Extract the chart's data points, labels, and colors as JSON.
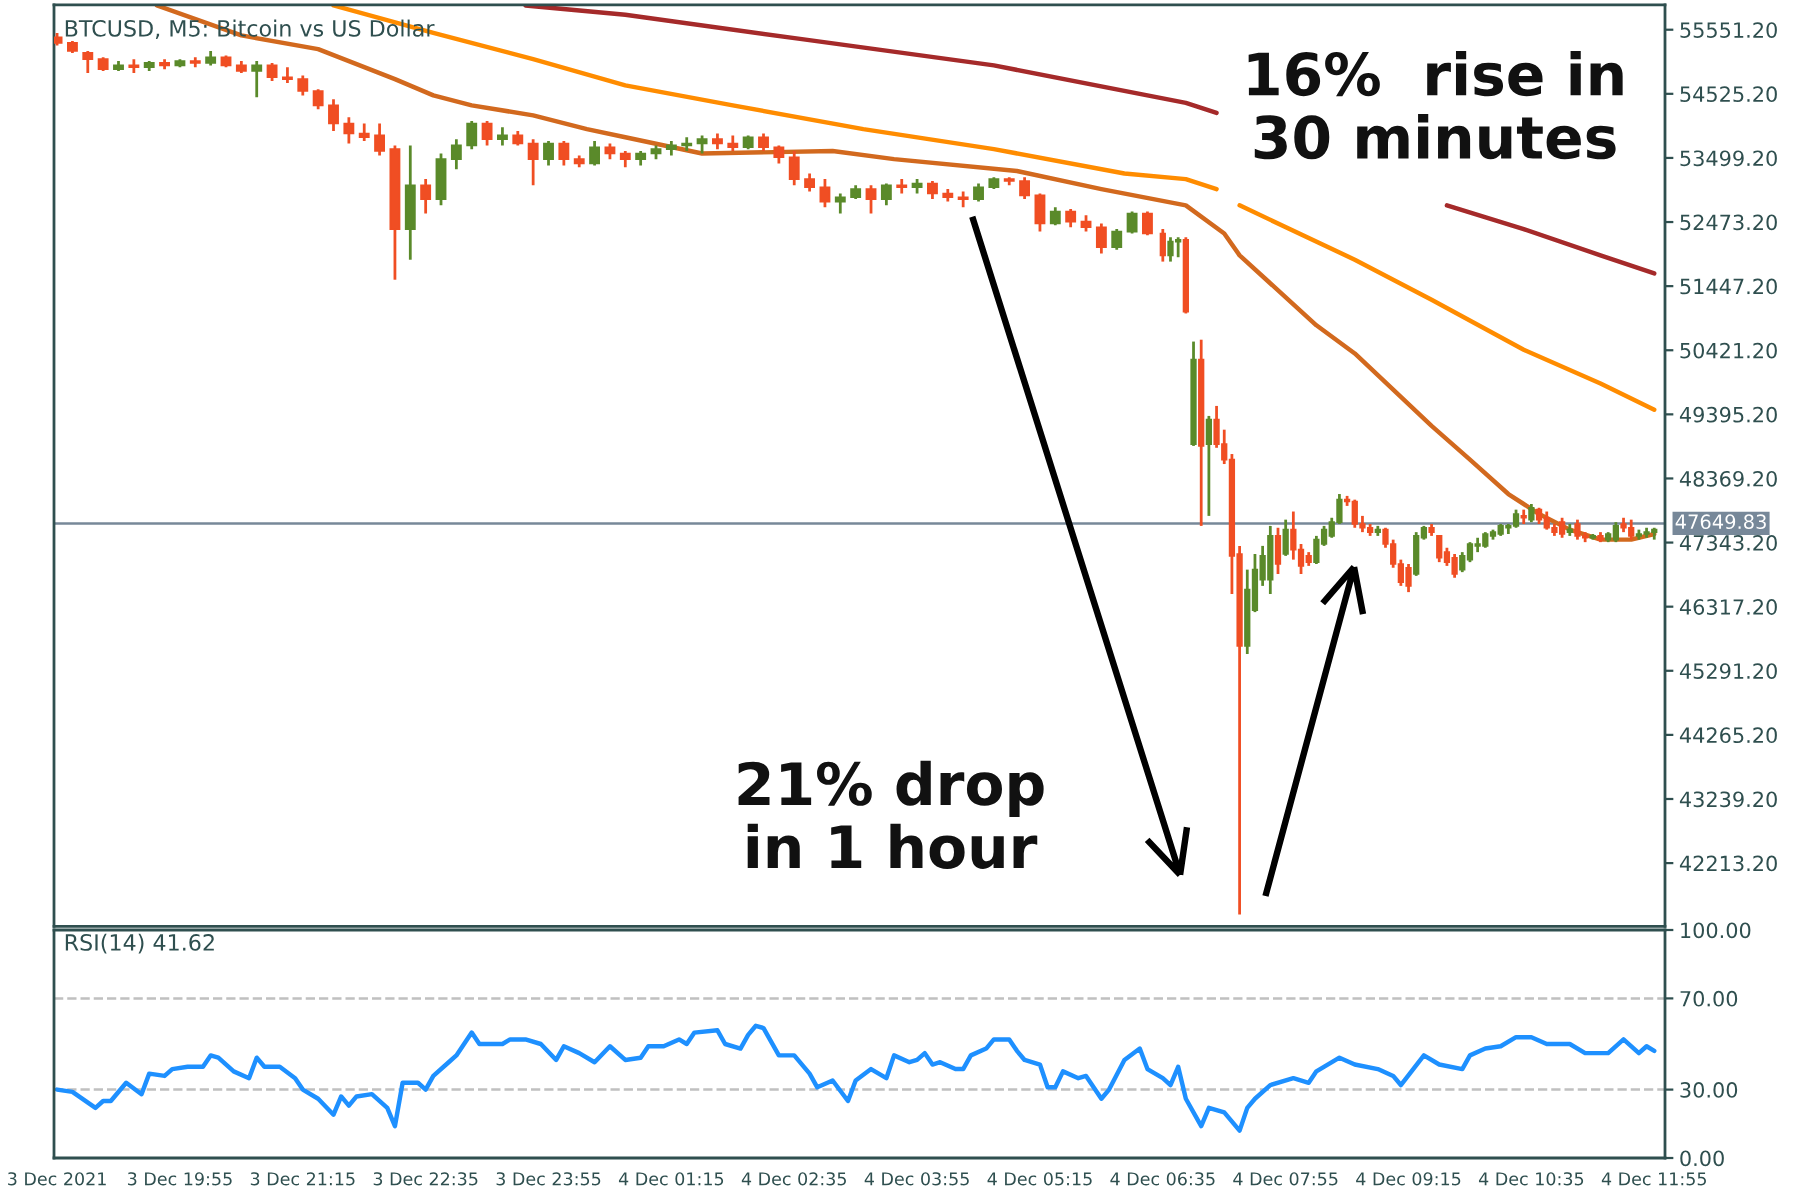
{
  "chart_data": [
    {
      "type": "candlestick",
      "title": "BTCUSD, M5: Bitcoin vs US Dollar",
      "x": [
        "2021-12-03T18:35",
        "2021-12-03T18:45",
        "2021-12-03T18:55",
        "2021-12-03T19:05",
        "2021-12-03T19:15",
        "2021-12-03T19:25",
        "2021-12-03T19:35",
        "2021-12-03T19:45",
        "2021-12-03T19:55",
        "2021-12-03T20:05",
        "2021-12-03T20:15",
        "2021-12-03T20:25",
        "2021-12-03T20:35",
        "2021-12-03T20:45",
        "2021-12-03T20:55",
        "2021-12-03T21:05",
        "2021-12-03T21:15",
        "2021-12-03T21:25",
        "2021-12-03T21:35",
        "2021-12-03T21:45",
        "2021-12-03T21:55",
        "2021-12-03T22:05",
        "2021-12-03T22:15",
        "2021-12-03T22:25",
        "2021-12-03T22:35",
        "2021-12-03T22:45",
        "2021-12-03T22:55",
        "2021-12-03T23:05",
        "2021-12-03T23:15",
        "2021-12-03T23:25",
        "2021-12-03T23:35",
        "2021-12-03T23:45",
        "2021-12-03T23:55",
        "2021-12-04T00:05",
        "2021-12-04T00:15",
        "2021-12-04T00:25",
        "2021-12-04T00:35",
        "2021-12-04T00:45",
        "2021-12-04T00:55",
        "2021-12-04T01:05",
        "2021-12-04T01:15",
        "2021-12-04T01:25",
        "2021-12-04T01:35",
        "2021-12-04T01:45",
        "2021-12-04T01:55",
        "2021-12-04T02:05",
        "2021-12-04T02:15",
        "2021-12-04T02:25",
        "2021-12-04T02:35",
        "2021-12-04T02:45",
        "2021-12-04T02:55",
        "2021-12-04T03:05",
        "2021-12-04T03:15",
        "2021-12-04T03:25",
        "2021-12-04T03:35",
        "2021-12-04T03:45",
        "2021-12-04T03:55",
        "2021-12-04T04:05",
        "2021-12-04T04:15",
        "2021-12-04T04:25",
        "2021-12-04T04:35",
        "2021-12-04T04:45",
        "2021-12-04T04:55",
        "2021-12-04T05:05",
        "2021-12-04T05:15",
        "2021-12-04T05:25",
        "2021-12-04T05:35",
        "2021-12-04T05:45",
        "2021-12-04T05:55",
        "2021-12-04T06:05",
        "2021-12-04T06:15",
        "2021-12-04T06:25",
        "2021-12-04T06:35",
        "2021-12-04T06:40",
        "2021-12-04T06:45",
        "2021-12-04T06:50",
        "2021-12-04T06:55",
        "2021-12-04T07:00",
        "2021-12-04T07:05",
        "2021-12-04T07:10",
        "2021-12-04T07:15",
        "2021-12-04T07:20",
        "2021-12-04T07:25",
        "2021-12-04T07:30",
        "2021-12-04T07:35",
        "2021-12-04T07:40",
        "2021-12-04T07:45",
        "2021-12-04T07:50",
        "2021-12-04T07:55",
        "2021-12-04T08:00",
        "2021-12-04T08:05",
        "2021-12-04T08:10",
        "2021-12-04T08:15",
        "2021-12-04T08:20",
        "2021-12-04T08:25",
        "2021-12-04T08:30",
        "2021-12-04T08:35",
        "2021-12-04T08:40",
        "2021-12-04T08:45",
        "2021-12-04T08:50",
        "2021-12-04T08:55",
        "2021-12-04T09:00",
        "2021-12-04T09:05",
        "2021-12-04T09:10",
        "2021-12-04T09:15",
        "2021-12-04T09:20",
        "2021-12-04T09:25",
        "2021-12-04T09:30",
        "2021-12-04T09:35",
        "2021-12-04T09:40",
        "2021-12-04T09:45",
        "2021-12-04T09:50",
        "2021-12-04T09:55",
        "2021-12-04T10:00",
        "2021-12-04T10:05",
        "2021-12-04T10:10",
        "2021-12-04T10:15",
        "2021-12-04T10:20",
        "2021-12-04T10:25",
        "2021-12-04T10:30",
        "2021-12-04T10:35",
        "2021-12-04T10:40",
        "2021-12-04T10:45",
        "2021-12-04T10:50",
        "2021-12-04T10:55",
        "2021-12-04T11:00",
        "2021-12-04T11:05",
        "2021-12-04T11:10",
        "2021-12-04T11:15",
        "2021-12-04T11:20",
        "2021-12-04T11:25",
        "2021-12-04T11:30",
        "2021-12-04T11:35",
        "2021-12-04T11:40",
        "2021-12-04T11:45",
        "2021-12-04T11:50",
        "2021-12-04T11:55"
      ],
      "ohlc": [
        [
          55430,
          55500,
          55300,
          55340
        ],
        [
          55340,
          55370,
          55180,
          55210
        ],
        [
          55180,
          55210,
          54860,
          55080
        ],
        [
          55080,
          55110,
          54890,
          54920
        ],
        [
          54920,
          55050,
          54890,
          54980
        ],
        [
          54980,
          55080,
          54860,
          54950
        ],
        [
          54950,
          55050,
          54890,
          55020
        ],
        [
          55020,
          55080,
          54920,
          54980
        ],
        [
          54980,
          55080,
          54950,
          55050
        ],
        [
          55050,
          55110,
          54950,
          55020
        ],
        [
          55020,
          55210,
          54980,
          55110
        ],
        [
          55110,
          55140,
          54950,
          54980
        ],
        [
          54980,
          55050,
          54860,
          54890
        ],
        [
          54890,
          55050,
          54470,
          54980
        ],
        [
          54980,
          55020,
          54730,
          54790
        ],
        [
          54790,
          54950,
          54700,
          54760
        ],
        [
          54760,
          54820,
          54500,
          54570
        ],
        [
          54570,
          54600,
          54280,
          54340
        ],
        [
          54340,
          54440,
          53930,
          54050
        ],
        [
          54050,
          54150,
          53730,
          53890
        ],
        [
          53890,
          54050,
          53770,
          53830
        ],
        [
          53860,
          54050,
          53540,
          53610
        ],
        [
          53640,
          53700,
          51550,
          52360
        ],
        [
          52360,
          53700,
          51870,
          53060
        ],
        [
          53060,
          53160,
          52610,
          52840
        ],
        [
          52840,
          53570,
          52740,
          53480
        ],
        [
          53480,
          53800,
          53320,
          53700
        ],
        [
          53700,
          54090,
          53640,
          54050
        ],
        [
          54050,
          54090,
          53700,
          53800
        ],
        [
          53800,
          53990,
          53700,
          53860
        ],
        [
          53860,
          53930,
          53700,
          53730
        ],
        [
          53730,
          53800,
          53060,
          53480
        ],
        [
          53480,
          53770,
          53380,
          53730
        ],
        [
          53730,
          53770,
          53380,
          53480
        ],
        [
          53480,
          53540,
          53350,
          53410
        ],
        [
          53410,
          53770,
          53380,
          53670
        ],
        [
          53670,
          53730,
          53480,
          53570
        ],
        [
          53570,
          53610,
          53350,
          53480
        ],
        [
          53480,
          53610,
          53380,
          53570
        ],
        [
          53570,
          53700,
          53480,
          53640
        ],
        [
          53640,
          53770,
          53540,
          53700
        ],
        [
          53700,
          53830,
          53610,
          53730
        ],
        [
          53730,
          53860,
          53570,
          53800
        ],
        [
          53800,
          53890,
          53640,
          53730
        ],
        [
          53730,
          53860,
          53610,
          53670
        ],
        [
          53670,
          53860,
          53640,
          53830
        ],
        [
          53830,
          53890,
          53610,
          53670
        ],
        [
          53670,
          53700,
          53410,
          53510
        ],
        [
          53510,
          53610,
          53060,
          53160
        ],
        [
          53160,
          53250,
          52960,
          53030
        ],
        [
          53030,
          53160,
          52710,
          52800
        ],
        [
          52800,
          52930,
          52610,
          52870
        ],
        [
          52870,
          53060,
          52840,
          53000
        ],
        [
          53000,
          53060,
          52610,
          52840
        ],
        [
          52840,
          53090,
          52740,
          53060
        ],
        [
          53060,
          53160,
          52930,
          53030
        ],
        [
          53030,
          53160,
          52930,
          53090
        ],
        [
          53090,
          53130,
          52840,
          52930
        ],
        [
          52930,
          53000,
          52800,
          52870
        ],
        [
          52870,
          52960,
          52710,
          52840
        ],
        [
          52840,
          53090,
          52800,
          53030
        ],
        [
          53030,
          53190,
          53000,
          53160
        ],
        [
          53160,
          53190,
          53060,
          53130
        ],
        [
          53130,
          53190,
          52840,
          52900
        ],
        [
          52900,
          52930,
          52320,
          52450
        ],
        [
          52450,
          52710,
          52420,
          52640
        ],
        [
          52640,
          52680,
          52390,
          52480
        ],
        [
          52480,
          52580,
          52320,
          52390
        ],
        [
          52390,
          52450,
          51970,
          52070
        ],
        [
          52070,
          52360,
          52030,
          52320
        ],
        [
          52320,
          52640,
          52290,
          52610
        ],
        [
          52610,
          52640,
          52260,
          52290
        ],
        [
          52290,
          52360,
          51840,
          51940
        ],
        [
          51940,
          52230,
          51840,
          52160
        ],
        [
          52160,
          52230,
          51910,
          52190
        ],
        [
          52190,
          52230,
          51010,
          51040
        ],
        [
          48920,
          50560,
          48890,
          50270
        ],
        [
          50270,
          50590,
          47610,
          48890
        ],
        [
          48920,
          49370,
          47770,
          49310
        ],
        [
          49310,
          49530,
          48860,
          48920
        ],
        [
          48920,
          49150,
          48600,
          48670
        ],
        [
          48670,
          48760,
          46520,
          47130
        ],
        [
          47160,
          47290,
          41390,
          45690
        ],
        [
          45690,
          46910,
          45560,
          46590
        ],
        [
          46260,
          47160,
          46230,
          46910
        ],
        [
          46750,
          47290,
          46650,
          47130
        ],
        [
          46750,
          47610,
          46520,
          47450
        ],
        [
          47450,
          47580,
          46840,
          47000
        ],
        [
          47160,
          47710,
          47130,
          47550
        ],
        [
          47550,
          47840,
          47070,
          47230
        ],
        [
          47230,
          47320,
          46840,
          46970
        ],
        [
          47130,
          47190,
          46970,
          47030
        ],
        [
          47030,
          47450,
          47000,
          47390
        ],
        [
          47320,
          47610,
          47290,
          47550
        ],
        [
          47450,
          47740,
          47420,
          47670
        ],
        [
          47670,
          48120,
          47640,
          48030
        ],
        [
          48030,
          48090,
          47930,
          48000
        ],
        [
          48000,
          48030,
          47580,
          47640
        ],
        [
          47640,
          47770,
          47510,
          47580
        ],
        [
          47580,
          47640,
          47450,
          47510
        ],
        [
          47510,
          47610,
          47450,
          47550
        ],
        [
          47550,
          47580,
          47260,
          47320
        ],
        [
          47320,
          47390,
          46940,
          47000
        ],
        [
          47000,
          47070,
          46650,
          46710
        ],
        [
          46940,
          47000,
          46550,
          46650
        ],
        [
          46840,
          47510,
          46810,
          47450
        ],
        [
          47420,
          47610,
          47390,
          47580
        ],
        [
          47580,
          47640,
          47450,
          47510
        ],
        [
          47450,
          47450,
          47030,
          47100
        ],
        [
          47190,
          47260,
          46970,
          47030
        ],
        [
          47100,
          47160,
          46780,
          46840
        ],
        [
          46910,
          47190,
          46870,
          47130
        ],
        [
          47070,
          47350,
          47030,
          47320
        ],
        [
          47290,
          47420,
          47190,
          47320
        ],
        [
          47290,
          47510,
          47260,
          47480
        ],
        [
          47450,
          47550,
          47390,
          47510
        ],
        [
          47480,
          47640,
          47450,
          47610
        ],
        [
          47580,
          47640,
          47480,
          47610
        ],
        [
          47610,
          47870,
          47580,
          47800
        ],
        [
          47770,
          47870,
          47640,
          47740
        ],
        [
          47710,
          47960,
          47670,
          47900
        ],
        [
          47870,
          47900,
          47640,
          47710
        ],
        [
          47740,
          47840,
          47550,
          47580
        ],
        [
          47580,
          47640,
          47450,
          47510
        ],
        [
          47670,
          47740,
          47420,
          47480
        ],
        [
          47510,
          47640,
          47450,
          47550
        ],
        [
          47640,
          47710,
          47390,
          47450
        ],
        [
          47450,
          47510,
          47350,
          47420
        ],
        [
          47420,
          47480,
          47390,
          47450
        ],
        [
          47450,
          47510,
          47350,
          47390
        ],
        [
          47390,
          47510,
          47350,
          47480
        ],
        [
          47390,
          47670,
          47350,
          47610
        ],
        [
          47640,
          47740,
          47510,
          47580
        ],
        [
          47580,
          47710,
          47390,
          47450
        ],
        [
          47450,
          47550,
          47390,
          47480
        ],
        [
          47480,
          47580,
          47420,
          47510
        ],
        [
          47510,
          47580,
          47390,
          47550
        ]
      ],
      "series": [
        {
          "type": "line",
          "color": "#d2691e",
          "x": [
            "2021-12-03T19:40",
            "2021-12-03T20:35",
            "2021-12-03T21:25",
            "2021-12-03T22:15",
            "2021-12-03T22:40",
            "2021-12-03T23:05",
            "2021-12-03T23:45",
            "2021-12-04T00:20",
            "2021-12-04T00:45",
            "2021-12-04T01:35",
            "2021-12-04T03:00",
            "2021-12-04T03:40",
            "2021-12-04T05:00",
            "2021-12-04T05:55",
            "2021-12-04T06:50",
            "2021-12-04T07:15",
            "2021-12-04T07:25",
            "2021-12-04T08:15",
            "2021-12-04T08:40",
            "2021-12-04T09:05",
            "2021-12-04T09:30",
            "2021-12-04T09:55",
            "2021-12-04T10:20",
            "2021-12-04T10:40",
            "2021-12-04T11:00",
            "2021-12-04T11:20",
            "2021-12-04T11:40",
            "2021-12-04T11:55"
          ],
          "values": [
            55940,
            55460,
            55240,
            54760,
            54500,
            54340,
            54180,
            53960,
            53830,
            53570,
            53610,
            53480,
            53290,
            53000,
            52740,
            52290,
            51940,
            50820,
            50370,
            49790,
            49210,
            48670,
            48120,
            47800,
            47550,
            47390,
            47390,
            47480
          ]
        },
        {
          "type": "line",
          "color": "#ff8c00",
          "x": [
            "2021-12-03T21:35",
            "2021-12-03T22:40",
            "2021-12-03T23:45",
            "2021-12-04T00:45",
            "2021-12-04T01:55",
            "2021-12-04T03:20",
            "2021-12-04T04:45",
            "2021-12-04T06:10",
            "2021-12-04T06:50",
            "2021-12-04T07:10",
            "2021-12-04T07:15",
            "2021-12-04T07:25",
            "2021-12-04T08:40",
            "2021-12-04T09:30",
            "2021-12-04T10:30",
            "2021-12-04T11:20",
            "2021-12-04T11:55"
          ],
          "values": [
            55940,
            55500,
            55080,
            54660,
            54340,
            53960,
            53640,
            53250,
            53160,
            53000,
            null,
            52740,
            51870,
            51230,
            50430,
            49890,
            49470
          ]
        },
        {
          "type": "line",
          "color": "#a52a2a",
          "x": [
            "2021-12-03T23:40",
            "2021-12-04T00:45",
            "2021-12-04T02:40",
            "2021-12-04T04:45",
            "2021-12-04T06:50",
            "2021-12-04T07:10",
            "2021-12-04T08:00",
            "2021-12-04T09:40",
            "2021-12-04T10:30",
            "2021-12-04T11:20",
            "2021-12-04T11:55"
          ],
          "values": [
            55940,
            55790,
            55400,
            54980,
            54380,
            54220,
            null,
            52740,
            52360,
            51940,
            51650
          ]
        }
      ],
      "xlim": [
        "2021-12-03T18:33",
        "2021-12-04T12:02"
      ],
      "ylim": [
        41200,
        55950
      ],
      "yticks": [
        {
          "value": 42213.2,
          "label": "42213.20"
        },
        {
          "value": 43239.2,
          "label": "43239.20"
        },
        {
          "value": 44265.2,
          "label": "44265.20"
        },
        {
          "value": 45291.2,
          "label": "45291.20"
        },
        {
          "value": 46317.2,
          "label": "46317.20"
        },
        {
          "value": 47343.2,
          "label": "47343.20"
        },
        {
          "value": 48369.2,
          "label": "48369.20"
        },
        {
          "value": 49395.2,
          "label": "49395.20"
        },
        {
          "value": 50421.2,
          "label": "50421.20"
        },
        {
          "value": 51447.2,
          "label": "51447.20"
        },
        {
          "value": 52473.2,
          "label": "52473.20"
        },
        {
          "value": 53499.2,
          "label": "53499.20"
        },
        {
          "value": 54525.2,
          "label": "54525.20"
        },
        {
          "value": 55551.2,
          "label": "55551.20"
        }
      ],
      "tick_labels": "y",
      "ref_lines": [
        {
          "axis": "y",
          "value": 47649.83,
          "label": "47649.83",
          "color": "#778899"
        }
      ],
      "annotations": [
        "16%  rise in\n30 minutes",
        "21% drop\nin 1 hour"
      ]
    },
    {
      "type": "line",
      "title": "RSI(14) 41.62",
      "series": [
        {
          "color": "#1e90ff",
          "x": [
            "2021-12-03T18:35",
            "2021-12-03T18:45",
            "2021-12-03T19:00",
            "2021-12-03T19:05",
            "2021-12-03T19:10",
            "2021-12-03T19:20",
            "2021-12-03T19:30",
            "2021-12-03T19:35",
            "2021-12-03T19:45",
            "2021-12-03T19:50",
            "2021-12-03T20:00",
            "2021-12-03T20:10",
            "2021-12-03T20:15",
            "2021-12-03T20:20",
            "2021-12-03T20:30",
            "2021-12-03T20:40",
            "2021-12-03T20:45",
            "2021-12-03T20:50",
            "2021-12-03T21:00",
            "2021-12-03T21:10",
            "2021-12-03T21:15",
            "2021-12-03T21:25",
            "2021-12-03T21:35",
            "2021-12-03T21:40",
            "2021-12-03T21:45",
            "2021-12-03T21:50",
            "2021-12-03T22:00",
            "2021-12-03T22:10",
            "2021-12-03T22:15",
            "2021-12-03T22:20",
            "2021-12-03T22:30",
            "2021-12-03T22:35",
            "2021-12-03T22:40",
            "2021-12-03T22:50",
            "2021-12-03T22:55",
            "2021-12-03T23:05",
            "2021-12-03T23:10",
            "2021-12-03T23:25",
            "2021-12-03T23:30",
            "2021-12-03T23:40",
            "2021-12-03T23:50",
            "2021-12-04T00:00",
            "2021-12-04T00:05",
            "2021-12-04T00:15",
            "2021-12-04T00:25",
            "2021-12-04T00:35",
            "2021-12-04T00:45",
            "2021-12-04T00:55",
            "2021-12-04T01:00",
            "2021-12-04T01:10",
            "2021-12-04T01:20",
            "2021-12-04T01:25",
            "2021-12-04T01:30",
            "2021-12-04T01:45",
            "2021-12-04T01:50",
            "2021-12-04T02:00",
            "2021-12-04T02:05",
            "2021-12-04T02:10",
            "2021-12-04T02:15",
            "2021-12-04T02:25",
            "2021-12-04T02:35",
            "2021-12-04T02:45",
            "2021-12-04T02:50",
            "2021-12-04T03:00",
            "2021-12-04T03:10",
            "2021-12-04T03:15",
            "2021-12-04T03:25",
            "2021-12-04T03:35",
            "2021-12-04T03:40",
            "2021-12-04T03:50",
            "2021-12-04T03:55",
            "2021-12-04T04:00",
            "2021-12-04T04:05",
            "2021-12-04T04:10",
            "2021-12-04T04:20",
            "2021-12-04T04:25",
            "2021-12-04T04:30",
            "2021-12-04T04:40",
            "2021-12-04T04:45",
            "2021-12-04T04:55",
            "2021-12-04T05:00",
            "2021-12-04T05:05",
            "2021-12-04T05:15",
            "2021-12-04T05:20",
            "2021-12-04T05:25",
            "2021-12-04T05:30",
            "2021-12-04T05:40",
            "2021-12-04T05:45",
            "2021-12-04T05:55",
            "2021-12-04T06:00",
            "2021-12-04T06:10",
            "2021-12-04T06:20",
            "2021-12-04T06:25",
            "2021-12-04T06:35",
            "2021-12-04T06:40",
            "2021-12-04T06:45",
            "2021-12-04T06:50",
            "2021-12-04T07:00",
            "2021-12-04T07:05",
            "2021-12-04T07:15",
            "2021-12-04T07:25",
            "2021-12-04T07:30",
            "2021-12-04T07:35",
            "2021-12-04T07:45",
            "2021-12-04T08:00",
            "2021-12-04T08:10",
            "2021-12-04T08:15",
            "2021-12-04T08:30",
            "2021-12-04T08:40",
            "2021-12-04T08:55",
            "2021-12-04T09:05",
            "2021-12-04T09:10",
            "2021-12-04T09:25",
            "2021-12-04T09:35",
            "2021-12-04T09:50",
            "2021-12-04T09:55",
            "2021-12-04T10:05",
            "2021-12-04T10:15",
            "2021-12-04T10:25",
            "2021-12-04T10:35",
            "2021-12-04T10:45",
            "2021-12-04T11:00",
            "2021-12-04T11:10",
            "2021-12-04T11:25",
            "2021-12-04T11:35",
            "2021-12-04T11:45",
            "2021-12-04T11:50",
            "2021-12-04T11:55"
          ],
          "values": [
            30,
            29,
            22,
            25,
            25,
            33,
            28,
            37,
            36,
            39,
            40,
            40,
            45,
            44,
            38,
            35,
            44,
            40,
            40,
            35,
            30,
            26,
            19,
            27,
            23,
            27,
            28,
            22,
            14,
            33,
            33,
            30,
            36,
            42,
            45,
            55,
            50,
            50,
            52,
            52,
            50,
            43,
            49,
            46,
            42,
            49,
            43,
            44,
            49,
            49,
            52,
            50,
            55,
            56,
            50,
            48,
            54,
            58,
            57,
            45,
            45,
            37,
            31,
            34,
            25,
            34,
            39,
            35,
            45,
            42,
            43,
            46,
            41,
            42,
            39,
            39,
            45,
            48,
            52,
            52,
            47,
            43,
            41,
            31,
            31,
            38,
            35,
            36,
            26,
            30,
            43,
            48,
            39,
            35,
            32,
            40,
            26,
            14,
            22,
            20,
            12,
            22,
            26,
            32,
            35,
            33,
            38,
            44,
            41,
            39,
            36,
            32,
            45,
            41,
            39,
            45,
            48,
            49,
            53,
            53,
            50,
            50,
            46,
            46,
            52,
            46,
            49,
            47
          ]
        }
      ],
      "xlim": [
        "2021-12-03T18:33",
        "2021-12-04T12:02"
      ],
      "xticks": [
        {
          "value": "2021-12-03T18:35",
          "label": "3 Dec 2021"
        },
        {
          "value": "2021-12-03T19:55",
          "label": "3 Dec 19:55"
        },
        {
          "value": "2021-12-03T21:15",
          "label": "3 Dec 21:15"
        },
        {
          "value": "2021-12-03T22:35",
          "label": "3 Dec 22:35"
        },
        {
          "value": "2021-12-03T23:55",
          "label": "3 Dec 23:55"
        },
        {
          "value": "2021-12-04T01:15",
          "label": "4 Dec 01:15"
        },
        {
          "value": "2021-12-04T02:35",
          "label": "4 Dec 02:35"
        },
        {
          "value": "2021-12-04T03:55",
          "label": "4 Dec 03:55"
        },
        {
          "value": "2021-12-04T05:15",
          "label": "4 Dec 05:15"
        },
        {
          "value": "2021-12-04T06:35",
          "label": "4 Dec 06:35"
        },
        {
          "value": "2021-12-04T07:55",
          "label": "4 Dec 07:55"
        },
        {
          "value": "2021-12-04T09:15",
          "label": "4 Dec 09:15"
        },
        {
          "value": "2021-12-04T10:35",
          "label": "4 Dec 10:35"
        },
        {
          "value": "2021-12-04T11:55",
          "label": "4 Dec 11:55"
        }
      ],
      "ylim": [
        0,
        100
      ],
      "yticks": [
        {
          "value": 0,
          "label": "0.00"
        },
        {
          "value": 30,
          "label": "30.00"
        },
        {
          "value": 70,
          "label": "70.00"
        },
        {
          "value": 100,
          "label": "100.00"
        }
      ],
      "ref_lines": [
        {
          "axis": "y",
          "value": 30,
          "color": "#c0c0c0",
          "line_style": "dashed"
        },
        {
          "axis": "y",
          "value": 70,
          "color": "#c0c0c0",
          "line_style": "dashed"
        }
      ]
    }
  ]
}
